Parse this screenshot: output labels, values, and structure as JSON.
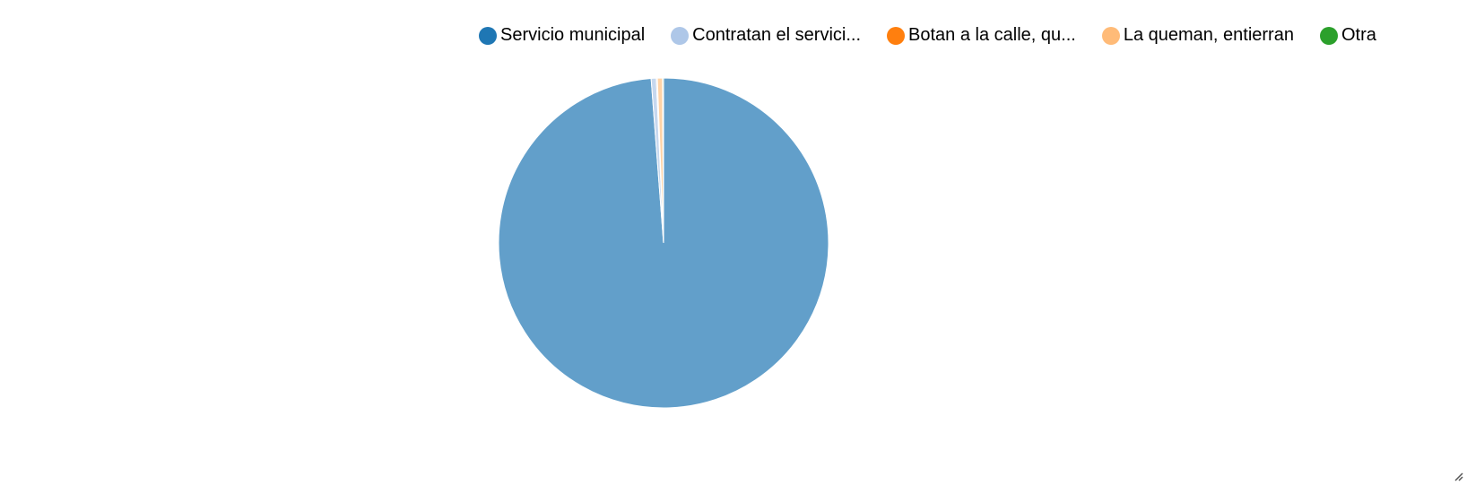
{
  "chart_data": {
    "type": "pie",
    "legend_position": "top",
    "slices": [
      {
        "label": "Servicio municipal",
        "value": 98.8,
        "color": "#1f77b4",
        "fill": "#629fca"
      },
      {
        "label": "Contratan el servici...",
        "value": 0.5,
        "color": "#aec7e8",
        "fill": "#c6d8ef"
      },
      {
        "label": "Botan a la calle, qu...",
        "value": 0.1,
        "color": "#ff7f0e",
        "fill": "#ffa556"
      },
      {
        "label": "La queman, entierran",
        "value": 0.5,
        "color": "#ffbb78",
        "fill": "#ffd3a6"
      },
      {
        "label": "Otra",
        "value": 0.1,
        "color": "#2ca02c",
        "fill": "#6bbc6b"
      }
    ]
  }
}
